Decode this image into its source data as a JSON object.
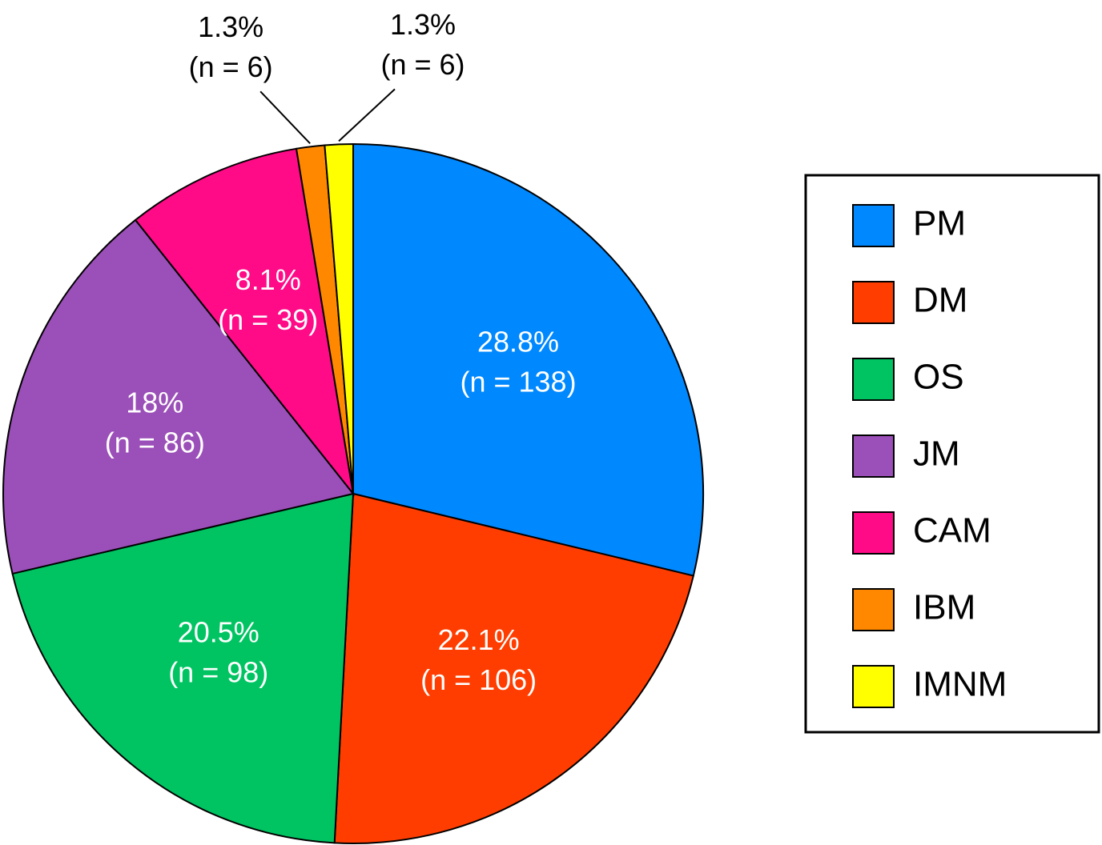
{
  "chart_data": {
    "type": "pie",
    "categories": [
      "PM",
      "DM",
      "OS",
      "JM",
      "CAM",
      "IBM",
      "IMNM"
    ],
    "values": [
      28.8,
      22.1,
      20.5,
      18,
      8.1,
      1.3,
      1.3
    ],
    "value_labels": [
      "28.8%",
      "22.1%",
      "20.5%",
      "18%",
      "8.1%",
      "1.3%",
      "1.3%"
    ],
    "count_labels": [
      "(n = 138)",
      "(n = 106)",
      "(n = 98)",
      "(n = 86)",
      "(n = 39)",
      "(n = 6)",
      "(n = 6)"
    ],
    "colors": [
      "#0088ff",
      "#ff3d00",
      "#00c462",
      "#9b4fb8",
      "#ff0a87",
      "#ff8800",
      "#ffff00"
    ],
    "legend": "right"
  }
}
